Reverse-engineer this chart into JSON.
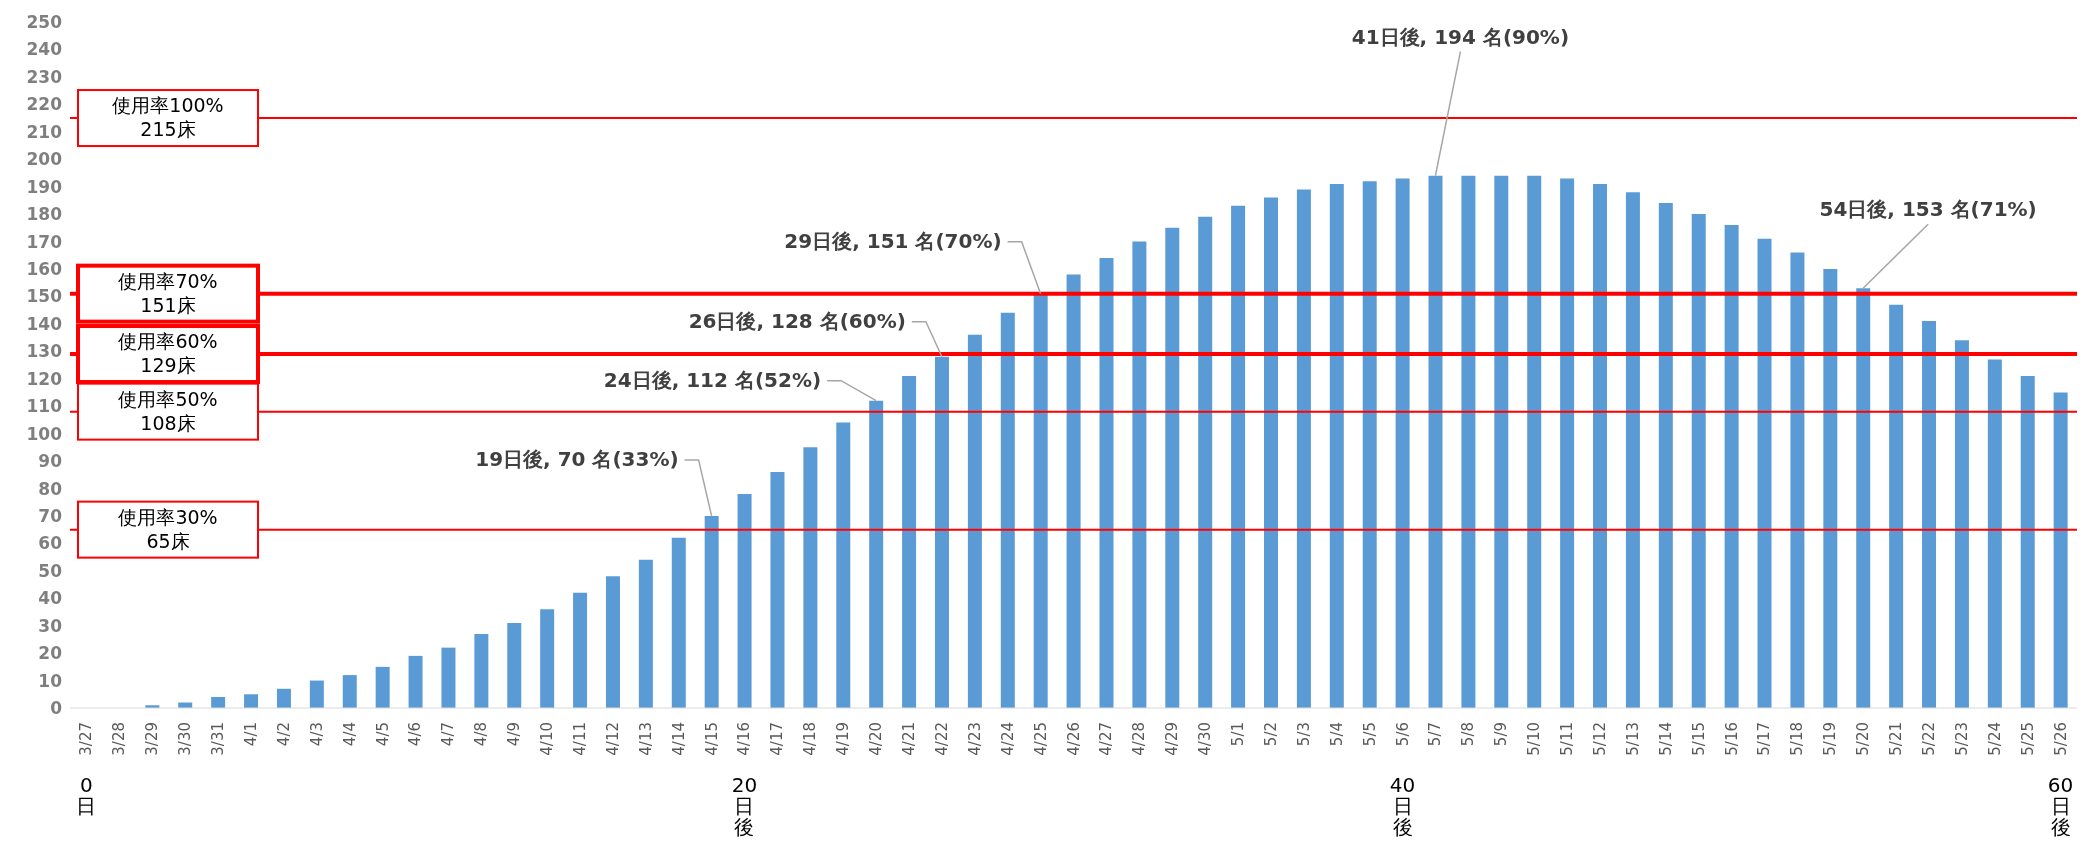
{
  "chart_data": {
    "type": "bar",
    "categories": [
      "3/27",
      "3/28",
      "3/29",
      "3/30",
      "3/31",
      "4/1",
      "4/2",
      "4/3",
      "4/4",
      "4/5",
      "4/6",
      "4/7",
      "4/8",
      "4/9",
      "4/10",
      "4/11",
      "4/12",
      "4/13",
      "4/14",
      "4/15",
      "4/16",
      "4/17",
      "4/18",
      "4/19",
      "4/20",
      "4/21",
      "4/22",
      "4/23",
      "4/24",
      "4/25",
      "4/26",
      "4/27",
      "4/28",
      "4/29",
      "4/30",
      "5/1",
      "5/2",
      "5/3",
      "5/4",
      "5/5",
      "5/6",
      "5/7",
      "5/8",
      "5/9",
      "5/10",
      "5/11",
      "5/12",
      "5/13",
      "5/14",
      "5/15",
      "5/16",
      "5/17",
      "5/18",
      "5/19",
      "5/20",
      "5/21",
      "5/22",
      "5/23",
      "5/24",
      "5/25",
      "5/26"
    ],
    "values": [
      0,
      0,
      1,
      2,
      4,
      5,
      7,
      10,
      12,
      15,
      19,
      22,
      27,
      31,
      36,
      42,
      48,
      54,
      62,
      70,
      78,
      86,
      95,
      104,
      112,
      121,
      128,
      136,
      144,
      151,
      158,
      164,
      170,
      175,
      179,
      183,
      186,
      189,
      191,
      192,
      193,
      194,
      194,
      194,
      194,
      193,
      191,
      188,
      184,
      180,
      176,
      171,
      166,
      160,
      153,
      147,
      141,
      134,
      127,
      121,
      115
    ],
    "color": "#5b9bd5",
    "ylim": [
      0,
      250
    ],
    "yticks": [
      0,
      10,
      20,
      30,
      40,
      50,
      60,
      70,
      80,
      90,
      100,
      110,
      120,
      130,
      140,
      150,
      160,
      170,
      180,
      190,
      200,
      210,
      220,
      230,
      240,
      250
    ],
    "grid": false,
    "ref_lines": [
      {
        "axis": "y",
        "value": 215,
        "label": "使用率100%\n215床",
        "color": "#ff0000"
      },
      {
        "axis": "y",
        "value": 151,
        "label": "使用率70%\n151床",
        "color": "#ff0000"
      },
      {
        "axis": "y",
        "value": 129,
        "label": "使用率60%\n129床",
        "color": "#ff0000"
      },
      {
        "axis": "y",
        "value": 108,
        "label": "使用率50%\n108床",
        "color": "#ff0000"
      },
      {
        "axis": "y",
        "value": 65,
        "label": "使用率30%\n65床",
        "color": "#ff0000"
      }
    ],
    "annotations": [
      {
        "text": "19日後, 70 名(33%)",
        "x": "4/15",
        "y": 70
      },
      {
        "text": "24日後, 112 名(52%)",
        "x": "4/20",
        "y": 112
      },
      {
        "text": "26日後, 128 名(60%)",
        "x": "4/22",
        "y": 128
      },
      {
        "text": "29日後, 151 名(70%)",
        "x": "4/25",
        "y": 151
      },
      {
        "text": "41日後, 194 名(90%)",
        "x": "5/7",
        "y": 194
      },
      {
        "text": "54日後, 153 名(71%)",
        "x": "5/20",
        "y": 153
      },
      "0日",
      "20日後",
      "40日後",
      "60日後"
    ]
  }
}
